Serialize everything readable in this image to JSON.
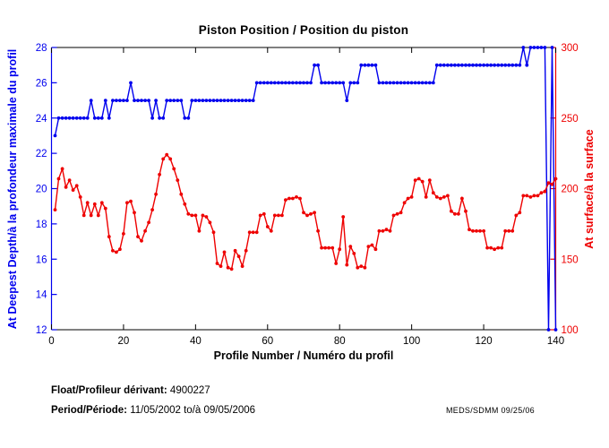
{
  "title": "Piston Position / Position du piston",
  "xlabel": "Profile Number / Numéro du profil",
  "footer": {
    "float_label": "Float/Profileur dérivant:",
    "float_value": "4900227",
    "period_label": "Period/Période:",
    "period_value": "11/05/2002  to/à  09/05/2006",
    "credit": "MEDS/SDMM  09/25/06"
  },
  "chart_data": {
    "type": "line",
    "title": "Piston Position / Position du piston",
    "xlabel": "Profile Number / Numéro du profil",
    "x_range": [
      0,
      140
    ],
    "x_ticks": [
      0,
      20,
      40,
      60,
      80,
      100,
      120,
      140
    ],
    "grid": false,
    "left_axis": {
      "label": "At Deepest Depth/à la profondeur maximale du profil",
      "range": [
        12,
        28
      ],
      "ticks": [
        12,
        14,
        16,
        18,
        20,
        22,
        24,
        26,
        28
      ],
      "color": "#0000ee"
    },
    "right_axis": {
      "label": "At surface/à la surface",
      "range": [
        100,
        300
      ],
      "ticks": [
        100,
        150,
        200,
        250,
        300
      ],
      "color": "#ee0000"
    },
    "series": [
      {
        "name": "At Deepest Depth / à la profondeur maximale du profil",
        "axis": "left",
        "color": "#0000ee",
        "x_start": 1,
        "x_step": 1,
        "values": [
          23,
          24,
          24,
          24,
          24,
          24,
          24,
          24,
          24,
          24,
          25,
          24,
          24,
          24,
          25,
          24,
          25,
          25,
          25,
          25,
          25,
          26,
          25,
          25,
          25,
          25,
          25,
          24,
          25,
          24,
          24,
          25,
          25,
          25,
          25,
          25,
          24,
          24,
          25,
          25,
          25,
          25,
          25,
          25,
          25,
          25,
          25,
          25,
          25,
          25,
          25,
          25,
          25,
          25,
          25,
          25,
          26,
          26,
          26,
          26,
          26,
          26,
          26,
          26,
          26,
          26,
          26,
          26,
          26,
          26,
          26,
          26,
          27,
          27,
          26,
          26,
          26,
          26,
          26,
          26,
          26,
          25,
          26,
          26,
          26,
          27,
          27,
          27,
          27,
          27,
          26,
          26,
          26,
          26,
          26,
          26,
          26,
          26,
          26,
          26,
          26,
          26,
          26,
          26,
          26,
          26,
          27,
          27,
          27,
          27,
          27,
          27,
          27,
          27,
          27,
          27,
          27,
          27,
          27,
          27,
          27,
          27,
          27,
          27,
          27,
          27,
          27,
          27,
          27,
          27,
          28,
          27,
          28,
          28,
          28,
          28,
          28,
          12,
          28,
          12
        ]
      },
      {
        "name": "At surface / à la surface",
        "axis": "right",
        "color": "#ee0000",
        "x_start": 1,
        "x_step": 1,
        "values": [
          185,
          207,
          214,
          201,
          206,
          199,
          202,
          194,
          181,
          190,
          181,
          189,
          181,
          190,
          186,
          166,
          156,
          155,
          157,
          168,
          190,
          191,
          183,
          166,
          163,
          170,
          176,
          185,
          196,
          210,
          221,
          224,
          221,
          214,
          206,
          196,
          189,
          182,
          181,
          181,
          170,
          181,
          180,
          176,
          169,
          147,
          145,
          155,
          144,
          143,
          156,
          152,
          145,
          156,
          169,
          169,
          169,
          181,
          182,
          173,
          170,
          181,
          181,
          181,
          192,
          193,
          193,
          194,
          193,
          183,
          181,
          182,
          183,
          170,
          158,
          158,
          158,
          158,
          147,
          157,
          180,
          146,
          159,
          154,
          144,
          145,
          144,
          159,
          160,
          157,
          170,
          170,
          171,
          170,
          181,
          182,
          183,
          190,
          193,
          194,
          206,
          207,
          205,
          194,
          206,
          197,
          194,
          193,
          194,
          195,
          184,
          182,
          182,
          193,
          184,
          171,
          170,
          170,
          170,
          170,
          158,
          158,
          157,
          158,
          158,
          170,
          170,
          170,
          181,
          183,
          195,
          195,
          194,
          195,
          195,
          197,
          198,
          204,
          203,
          207
        ]
      }
    ]
  }
}
